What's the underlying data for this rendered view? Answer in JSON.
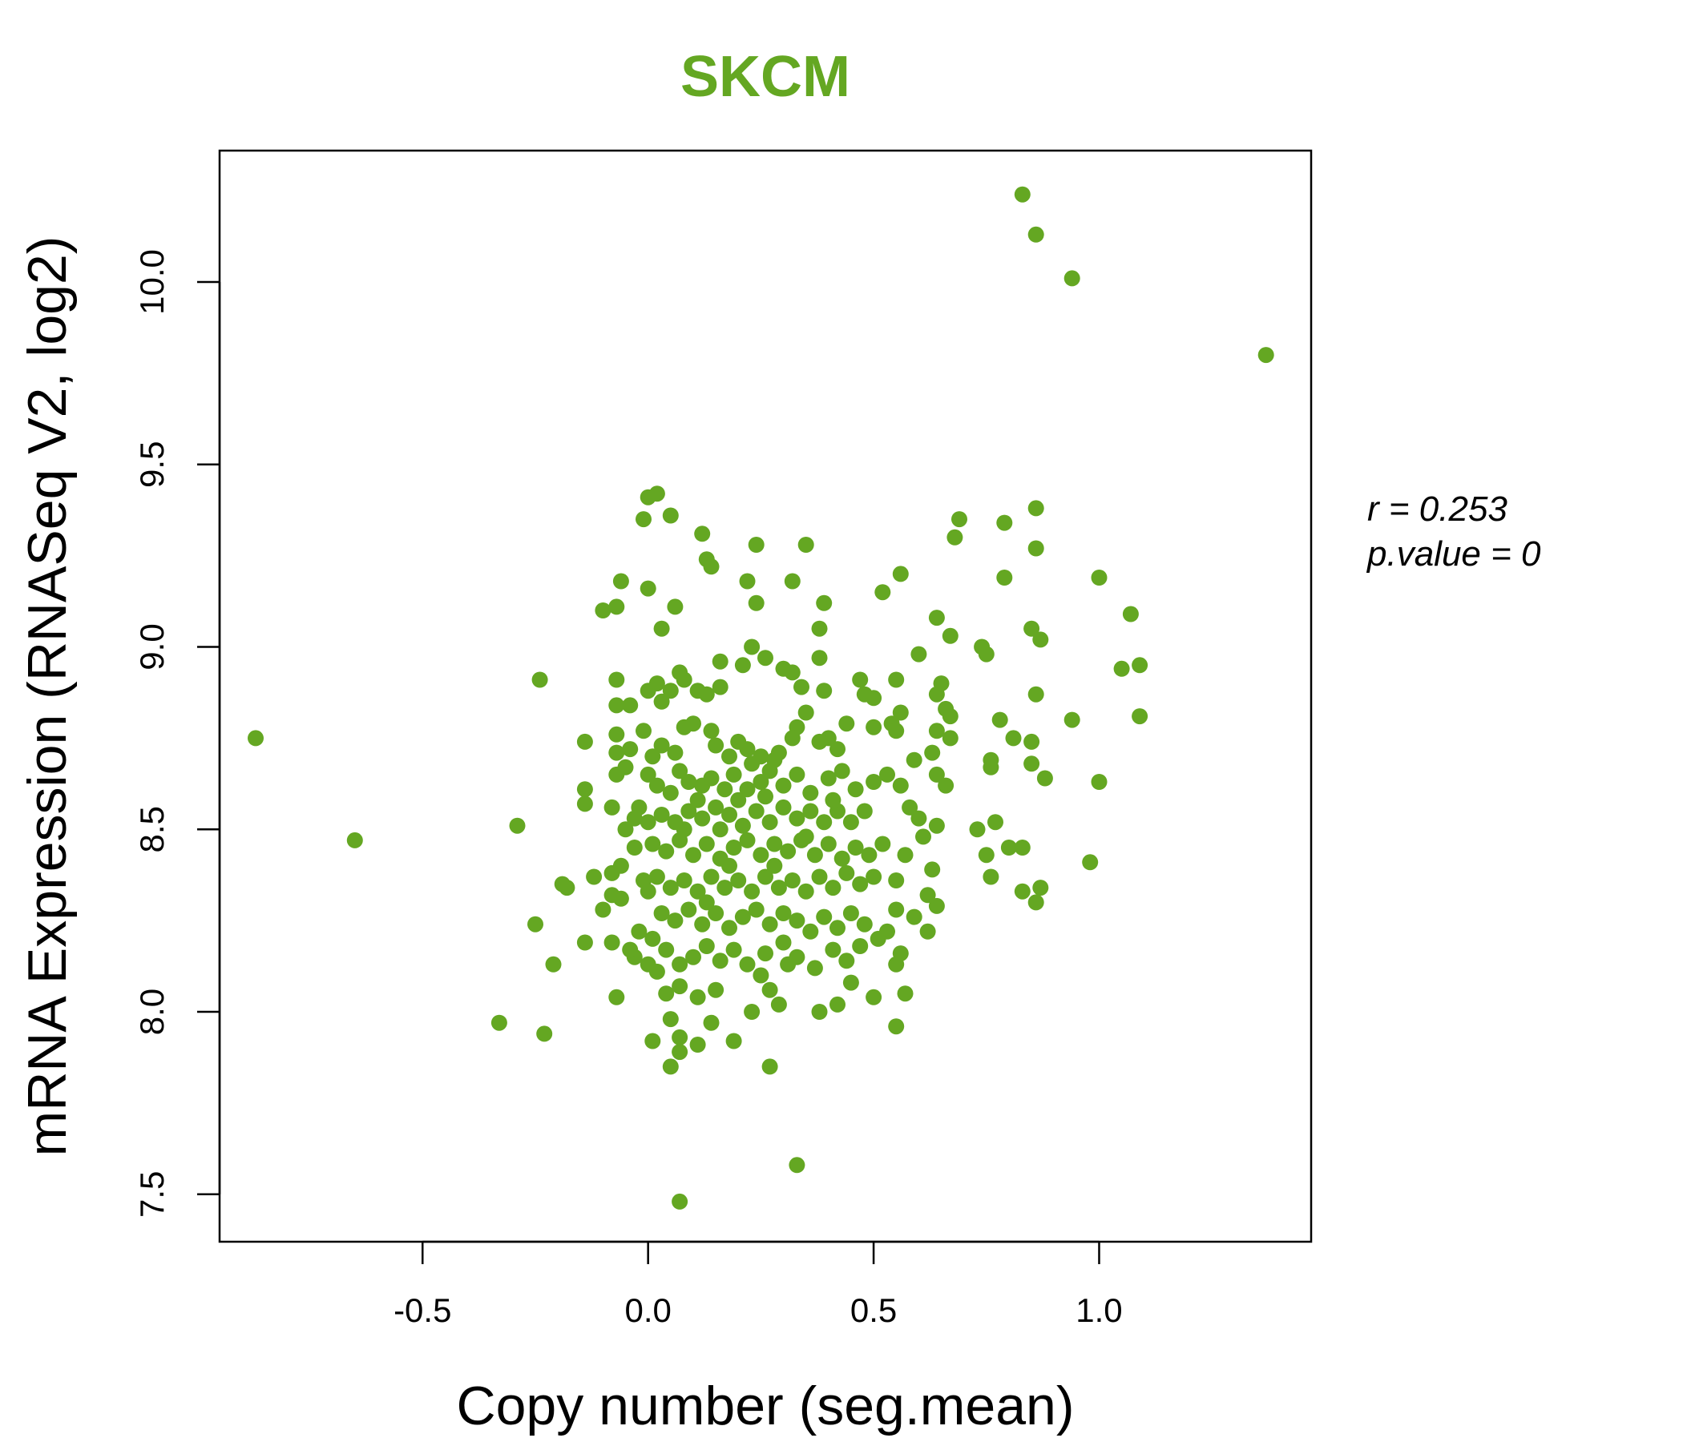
{
  "chart_data": {
    "type": "scatter",
    "title": "SKCM",
    "xlabel": "Copy number (seg.mean)",
    "ylabel": "mRNA Expression (RNASeq V2, log2)",
    "xlim": [
      -0.95,
      1.47
    ],
    "ylim": [
      7.37,
      10.36
    ],
    "xticks": [
      -0.5,
      0.0,
      0.5,
      1.0
    ],
    "xtick_labels": [
      "-0.5",
      "0.0",
      "0.5",
      "1.0"
    ],
    "yticks": [
      7.5,
      8.0,
      8.5,
      9.0,
      9.5,
      10.0
    ],
    "ytick_labels": [
      "7.5",
      "8.0",
      "8.5",
      "9.0",
      "9.5",
      "10.0"
    ],
    "grid": false,
    "annotations": {
      "r_label": "r = 0.253",
      "p_label": "p.value = 0"
    },
    "colors": {
      "point": "#64a722",
      "title": "#64a722",
      "axis": "#000000"
    },
    "points": [
      [
        0.83,
        10.24
      ],
      [
        0.86,
        10.13
      ],
      [
        0.94,
        10.01
      ],
      [
        1.37,
        9.8
      ],
      [
        -0.87,
        8.75
      ],
      [
        -0.65,
        8.47
      ],
      [
        -0.33,
        7.97
      ],
      [
        -0.23,
        7.94
      ],
      [
        -0.29,
        8.51
      ],
      [
        -0.24,
        8.91
      ],
      [
        -0.21,
        8.13
      ],
      [
        -0.25,
        8.24
      ],
      [
        0.33,
        7.58
      ],
      [
        0.07,
        7.48
      ],
      [
        0.05,
        7.85
      ],
      [
        0.27,
        7.85
      ],
      [
        0.0,
        9.41
      ],
      [
        0.02,
        9.42
      ],
      [
        0.05,
        9.36
      ],
      [
        -0.01,
        9.35
      ],
      [
        0.12,
        9.31
      ],
      [
        0.24,
        9.28
      ],
      [
        0.35,
        9.28
      ],
      [
        0.13,
        9.24
      ],
      [
        0.14,
        9.22
      ],
      [
        0.22,
        9.18
      ],
      [
        0.32,
        9.18
      ],
      [
        -0.06,
        9.18
      ],
      [
        0.0,
        9.16
      ],
      [
        0.56,
        9.2
      ],
      [
        0.52,
        9.15
      ],
      [
        0.39,
        9.12
      ],
      [
        0.24,
        9.12
      ],
      [
        -0.1,
        9.1
      ],
      [
        -0.07,
        9.11
      ],
      [
        0.06,
        9.11
      ],
      [
        0.03,
        9.05
      ],
      [
        0.38,
        9.05
      ],
      [
        0.64,
        9.08
      ],
      [
        0.67,
        9.03
      ],
      [
        0.69,
        9.35
      ],
      [
        0.68,
        9.3
      ],
      [
        0.79,
        9.34
      ],
      [
        0.86,
        9.38
      ],
      [
        0.86,
        9.27
      ],
      [
        0.79,
        9.19
      ],
      [
        1.0,
        9.19
      ],
      [
        1.07,
        9.09
      ],
      [
        0.85,
        9.05
      ],
      [
        0.87,
        9.02
      ],
      [
        0.74,
        9.0
      ],
      [
        0.75,
        8.98
      ],
      [
        1.05,
        8.94
      ],
      [
        1.09,
        8.95
      ],
      [
        0.86,
        8.87
      ],
      [
        0.94,
        8.8
      ],
      [
        1.09,
        8.81
      ],
      [
        0.78,
        8.8
      ],
      [
        0.81,
        8.75
      ],
      [
        0.85,
        8.74
      ],
      [
        0.76,
        8.69
      ],
      [
        0.76,
        8.67
      ],
      [
        0.85,
        8.68
      ],
      [
        0.88,
        8.64
      ],
      [
        1.0,
        8.63
      ],
      [
        0.73,
        8.5
      ],
      [
        0.77,
        8.52
      ],
      [
        0.8,
        8.45
      ],
      [
        0.83,
        8.45
      ],
      [
        0.75,
        8.43
      ],
      [
        0.76,
        8.37
      ],
      [
        0.83,
        8.33
      ],
      [
        0.87,
        8.34
      ],
      [
        0.86,
        8.3
      ],
      [
        0.98,
        8.41
      ],
      [
        0.6,
        8.98
      ],
      [
        0.64,
        8.87
      ],
      [
        0.65,
        8.9
      ],
      [
        0.66,
        8.83
      ],
      [
        0.67,
        8.81
      ],
      [
        0.64,
        8.77
      ],
      [
        0.67,
        8.75
      ],
      [
        0.63,
        8.71
      ],
      [
        0.59,
        8.69
      ],
      [
        0.64,
        8.65
      ],
      [
        0.66,
        8.62
      ],
      [
        0.56,
        8.62
      ],
      [
        0.58,
        8.56
      ],
      [
        0.6,
        8.53
      ],
      [
        0.61,
        8.48
      ],
      [
        0.64,
        8.51
      ],
      [
        0.63,
        8.39
      ],
      [
        0.62,
        8.32
      ],
      [
        0.64,
        8.29
      ],
      [
        0.59,
        8.26
      ],
      [
        0.62,
        8.22
      ],
      [
        0.55,
        8.28
      ],
      [
        0.56,
        8.16
      ],
      [
        0.55,
        8.13
      ],
      [
        0.57,
        8.05
      ],
      [
        0.55,
        7.96
      ],
      [
        0.5,
        8.04
      ],
      [
        0.45,
        8.08
      ],
      [
        0.42,
        8.02
      ],
      [
        0.38,
        8.0
      ],
      [
        0.29,
        8.02
      ],
      [
        0.23,
        8.0
      ],
      [
        0.27,
        8.06
      ],
      [
        0.25,
        8.1
      ],
      [
        0.31,
        8.13
      ],
      [
        0.19,
        7.92
      ],
      [
        0.14,
        7.97
      ],
      [
        0.11,
        7.91
      ],
      [
        0.07,
        7.89
      ],
      [
        0.07,
        7.93
      ],
      [
        0.01,
        7.92
      ],
      [
        0.05,
        7.98
      ],
      [
        0.11,
        8.04
      ],
      [
        0.15,
        8.06
      ],
      [
        0.04,
        8.05
      ],
      [
        0.07,
        8.07
      ],
      [
        -0.07,
        8.04
      ],
      [
        -0.03,
        8.15
      ],
      [
        -0.04,
        8.17
      ],
      [
        -0.08,
        8.19
      ],
      [
        -0.14,
        8.19
      ],
      [
        0.0,
        8.13
      ],
      [
        0.02,
        8.11
      ],
      [
        -0.1,
        8.28
      ],
      [
        -0.08,
        8.32
      ],
      [
        -0.06,
        8.31
      ],
      [
        -0.08,
        8.38
      ],
      [
        -0.12,
        8.37
      ],
      [
        -0.19,
        8.35
      ],
      [
        -0.18,
        8.34
      ],
      [
        -0.06,
        8.4
      ],
      [
        -0.14,
        8.57
      ],
      [
        -0.14,
        8.61
      ],
      [
        -0.08,
        8.56
      ],
      [
        -0.05,
        8.5
      ],
      [
        -0.03,
        8.53
      ],
      [
        -0.07,
        8.65
      ],
      [
        -0.05,
        8.67
      ],
      [
        -0.07,
        8.71
      ],
      [
        -0.07,
        8.76
      ],
      [
        -0.14,
        8.74
      ],
      [
        -0.04,
        8.72
      ],
      [
        -0.07,
        8.84
      ],
      [
        -0.04,
        8.84
      ],
      [
        -0.07,
        8.91
      ],
      [
        0.0,
        8.88
      ],
      [
        0.02,
        8.9
      ],
      [
        0.03,
        8.85
      ],
      [
        0.05,
        8.88
      ],
      [
        0.07,
        8.93
      ],
      [
        0.08,
        8.91
      ],
      [
        0.11,
        8.88
      ],
      [
        0.13,
        8.87
      ],
      [
        0.16,
        8.89
      ],
      [
        0.16,
        8.96
      ],
      [
        0.21,
        8.95
      ],
      [
        0.23,
        9.0
      ],
      [
        0.26,
        8.97
      ],
      [
        0.3,
        8.94
      ],
      [
        0.32,
        8.93
      ],
      [
        0.34,
        8.89
      ],
      [
        0.38,
        8.97
      ],
      [
        0.39,
        8.88
      ],
      [
        0.47,
        8.91
      ],
      [
        0.55,
        8.91
      ],
      [
        0.48,
        8.87
      ],
      [
        0.5,
        8.86
      ],
      [
        0.56,
        8.82
      ],
      [
        0.54,
        8.79
      ],
      [
        0.55,
        8.77
      ],
      [
        0.5,
        8.78
      ],
      [
        0.44,
        8.79
      ],
      [
        0.4,
        8.75
      ],
      [
        0.42,
        8.72
      ],
      [
        0.38,
        8.74
      ],
      [
        0.35,
        8.82
      ],
      [
        0.33,
        8.78
      ],
      [
        0.32,
        8.75
      ],
      [
        0.28,
        8.69
      ],
      [
        0.25,
        8.7
      ],
      [
        0.22,
        8.72
      ],
      [
        0.2,
        8.74
      ],
      [
        0.18,
        8.7
      ],
      [
        0.15,
        8.73
      ],
      [
        0.14,
        8.77
      ],
      [
        0.1,
        8.79
      ],
      [
        0.08,
        8.78
      ],
      [
        0.06,
        8.71
      ],
      [
        0.03,
        8.73
      ],
      [
        0.01,
        8.7
      ],
      [
        -0.01,
        8.77
      ],
      [
        0.0,
        8.65
      ],
      [
        0.02,
        8.62
      ],
      [
        0.05,
        8.6
      ],
      [
        0.07,
        8.66
      ],
      [
        0.09,
        8.63
      ],
      [
        0.12,
        8.62
      ],
      [
        0.14,
        8.64
      ],
      [
        0.17,
        8.61
      ],
      [
        0.19,
        8.65
      ],
      [
        0.22,
        8.61
      ],
      [
        0.25,
        8.63
      ],
      [
        0.27,
        8.66
      ],
      [
        0.3,
        8.62
      ],
      [
        0.33,
        8.65
      ],
      [
        0.36,
        8.6
      ],
      [
        0.4,
        8.64
      ],
      [
        0.43,
        8.66
      ],
      [
        0.46,
        8.61
      ],
      [
        0.5,
        8.63
      ],
      [
        0.53,
        8.65
      ],
      [
        0.48,
        8.55
      ],
      [
        0.45,
        8.52
      ],
      [
        0.42,
        8.55
      ],
      [
        0.39,
        8.52
      ],
      [
        0.36,
        8.55
      ],
      [
        0.33,
        8.53
      ],
      [
        0.3,
        8.56
      ],
      [
        0.27,
        8.52
      ],
      [
        0.24,
        8.55
      ],
      [
        0.21,
        8.51
      ],
      [
        0.18,
        8.54
      ],
      [
        0.15,
        8.56
      ],
      [
        0.12,
        8.53
      ],
      [
        0.09,
        8.55
      ],
      [
        0.06,
        8.52
      ],
      [
        0.03,
        8.54
      ],
      [
        0.0,
        8.52
      ],
      [
        -0.02,
        8.56
      ],
      [
        0.01,
        8.46
      ],
      [
        0.04,
        8.44
      ],
      [
        0.07,
        8.47
      ],
      [
        0.1,
        8.43
      ],
      [
        0.13,
        8.46
      ],
      [
        0.16,
        8.42
      ],
      [
        0.19,
        8.45
      ],
      [
        0.22,
        8.47
      ],
      [
        0.25,
        8.43
      ],
      [
        0.28,
        8.46
      ],
      [
        0.31,
        8.44
      ],
      [
        0.34,
        8.47
      ],
      [
        0.37,
        8.43
      ],
      [
        0.4,
        8.46
      ],
      [
        0.43,
        8.42
      ],
      [
        0.46,
        8.45
      ],
      [
        0.49,
        8.43
      ],
      [
        0.52,
        8.46
      ],
      [
        0.5,
        8.37
      ],
      [
        0.47,
        8.35
      ],
      [
        0.44,
        8.38
      ],
      [
        0.41,
        8.34
      ],
      [
        0.38,
        8.37
      ],
      [
        0.35,
        8.33
      ],
      [
        0.32,
        8.36
      ],
      [
        0.29,
        8.34
      ],
      [
        0.26,
        8.37
      ],
      [
        0.23,
        8.33
      ],
      [
        0.2,
        8.36
      ],
      [
        0.17,
        8.34
      ],
      [
        0.14,
        8.37
      ],
      [
        0.11,
        8.33
      ],
      [
        0.08,
        8.36
      ],
      [
        0.05,
        8.34
      ],
      [
        0.02,
        8.37
      ],
      [
        0.0,
        8.33
      ],
      [
        0.03,
        8.27
      ],
      [
        0.06,
        8.25
      ],
      [
        0.09,
        8.28
      ],
      [
        0.12,
        8.24
      ],
      [
        0.15,
        8.27
      ],
      [
        0.18,
        8.23
      ],
      [
        0.21,
        8.26
      ],
      [
        0.24,
        8.28
      ],
      [
        0.27,
        8.24
      ],
      [
        0.3,
        8.27
      ],
      [
        0.33,
        8.25
      ],
      [
        0.36,
        8.22
      ],
      [
        0.39,
        8.26
      ],
      [
        0.42,
        8.23
      ],
      [
        0.45,
        8.27
      ],
      [
        0.48,
        8.24
      ],
      [
        0.51,
        8.2
      ],
      [
        0.53,
        8.22
      ],
      [
        0.47,
        8.18
      ],
      [
        0.44,
        8.14
      ],
      [
        0.41,
        8.17
      ],
      [
        0.37,
        8.12
      ],
      [
        0.33,
        8.15
      ],
      [
        0.3,
        8.19
      ],
      [
        0.26,
        8.16
      ],
      [
        0.22,
        8.13
      ],
      [
        0.19,
        8.17
      ],
      [
        0.16,
        8.14
      ],
      [
        0.13,
        8.18
      ],
      [
        0.1,
        8.15
      ],
      [
        0.07,
        8.13
      ],
      [
        0.04,
        8.17
      ],
      [
        0.01,
        8.2
      ],
      [
        -0.02,
        8.22
      ],
      [
        0.2,
        8.58
      ],
      [
        0.23,
        8.68
      ],
      [
        0.26,
        8.59
      ],
      [
        0.29,
        8.71
      ],
      [
        0.16,
        8.5
      ],
      [
        0.18,
        8.4
      ],
      [
        0.13,
        8.3
      ],
      [
        0.11,
        8.58
      ],
      [
        0.08,
        8.5
      ],
      [
        0.28,
        8.4
      ],
      [
        0.35,
        8.48
      ],
      [
        0.41,
        8.58
      ],
      [
        -0.03,
        8.45
      ],
      [
        -0.01,
        8.36
      ],
      [
        0.57,
        8.43
      ],
      [
        0.55,
        8.36
      ]
    ]
  }
}
